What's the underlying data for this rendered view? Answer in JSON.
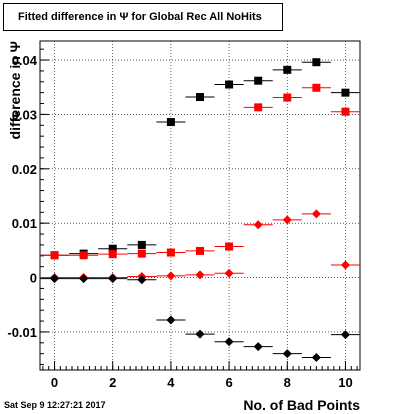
{
  "title": "Fitted difference in Ψ  for Global Rec All NoHits",
  "timestamp": "Sat Sep  9 12:27:21 2017",
  "chart_data": {
    "type": "scatter",
    "xlabel": "No. of Bad Points",
    "ylabel": "difference in Ψ",
    "xlim": [
      -0.5,
      10.5
    ],
    "ylim": [
      -0.017,
      0.0435
    ],
    "x_ticks": [
      0,
      2,
      4,
      6,
      8,
      10
    ],
    "y_ticks": [
      -0.01,
      0,
      0.01,
      0.02,
      0.03,
      0.04
    ],
    "y_tick_labels": [
      "-0.01",
      "0",
      "0.01",
      "0.02",
      "0.03",
      "0.04"
    ],
    "grid": true,
    "x_error": 0.5,
    "series": [
      {
        "marker": "square",
        "color": "#000000",
        "x": [
          0,
          1,
          2,
          3,
          4,
          5,
          6,
          7,
          8,
          9,
          10
        ],
        "y": [
          0.0041,
          0.0044,
          0.0053,
          0.006,
          0.0286,
          0.0332,
          0.0355,
          0.0362,
          0.0382,
          0.0396,
          0.034
        ]
      },
      {
        "marker": "square",
        "color": "#ff0000",
        "x": [
          0,
          1,
          2,
          3,
          4,
          5,
          6,
          7,
          8,
          9,
          10
        ],
        "y": [
          0.0041,
          0.0041,
          0.0043,
          0.0044,
          0.0046,
          0.0049,
          0.0057,
          0.0313,
          0.0331,
          0.0349,
          0.0305
        ]
      },
      {
        "marker": "diamond",
        "color": "#ff0000",
        "x": [
          0,
          1,
          2,
          3,
          4,
          5,
          6,
          7,
          8,
          9,
          10
        ],
        "y": [
          0.0,
          0.0,
          0.0,
          0.0002,
          0.0003,
          0.0005,
          0.0008,
          0.0097,
          0.0106,
          0.0117,
          0.0023
        ]
      },
      {
        "marker": "diamond",
        "color": "#000000",
        "x": [
          0,
          1,
          2,
          3,
          4,
          5,
          6,
          7,
          8,
          9,
          10
        ],
        "y": [
          -0.0002,
          -0.0002,
          -0.0002,
          -0.0004,
          -0.0078,
          -0.0104,
          -0.0118,
          -0.0127,
          -0.014,
          -0.0147,
          -0.0105
        ]
      }
    ]
  }
}
